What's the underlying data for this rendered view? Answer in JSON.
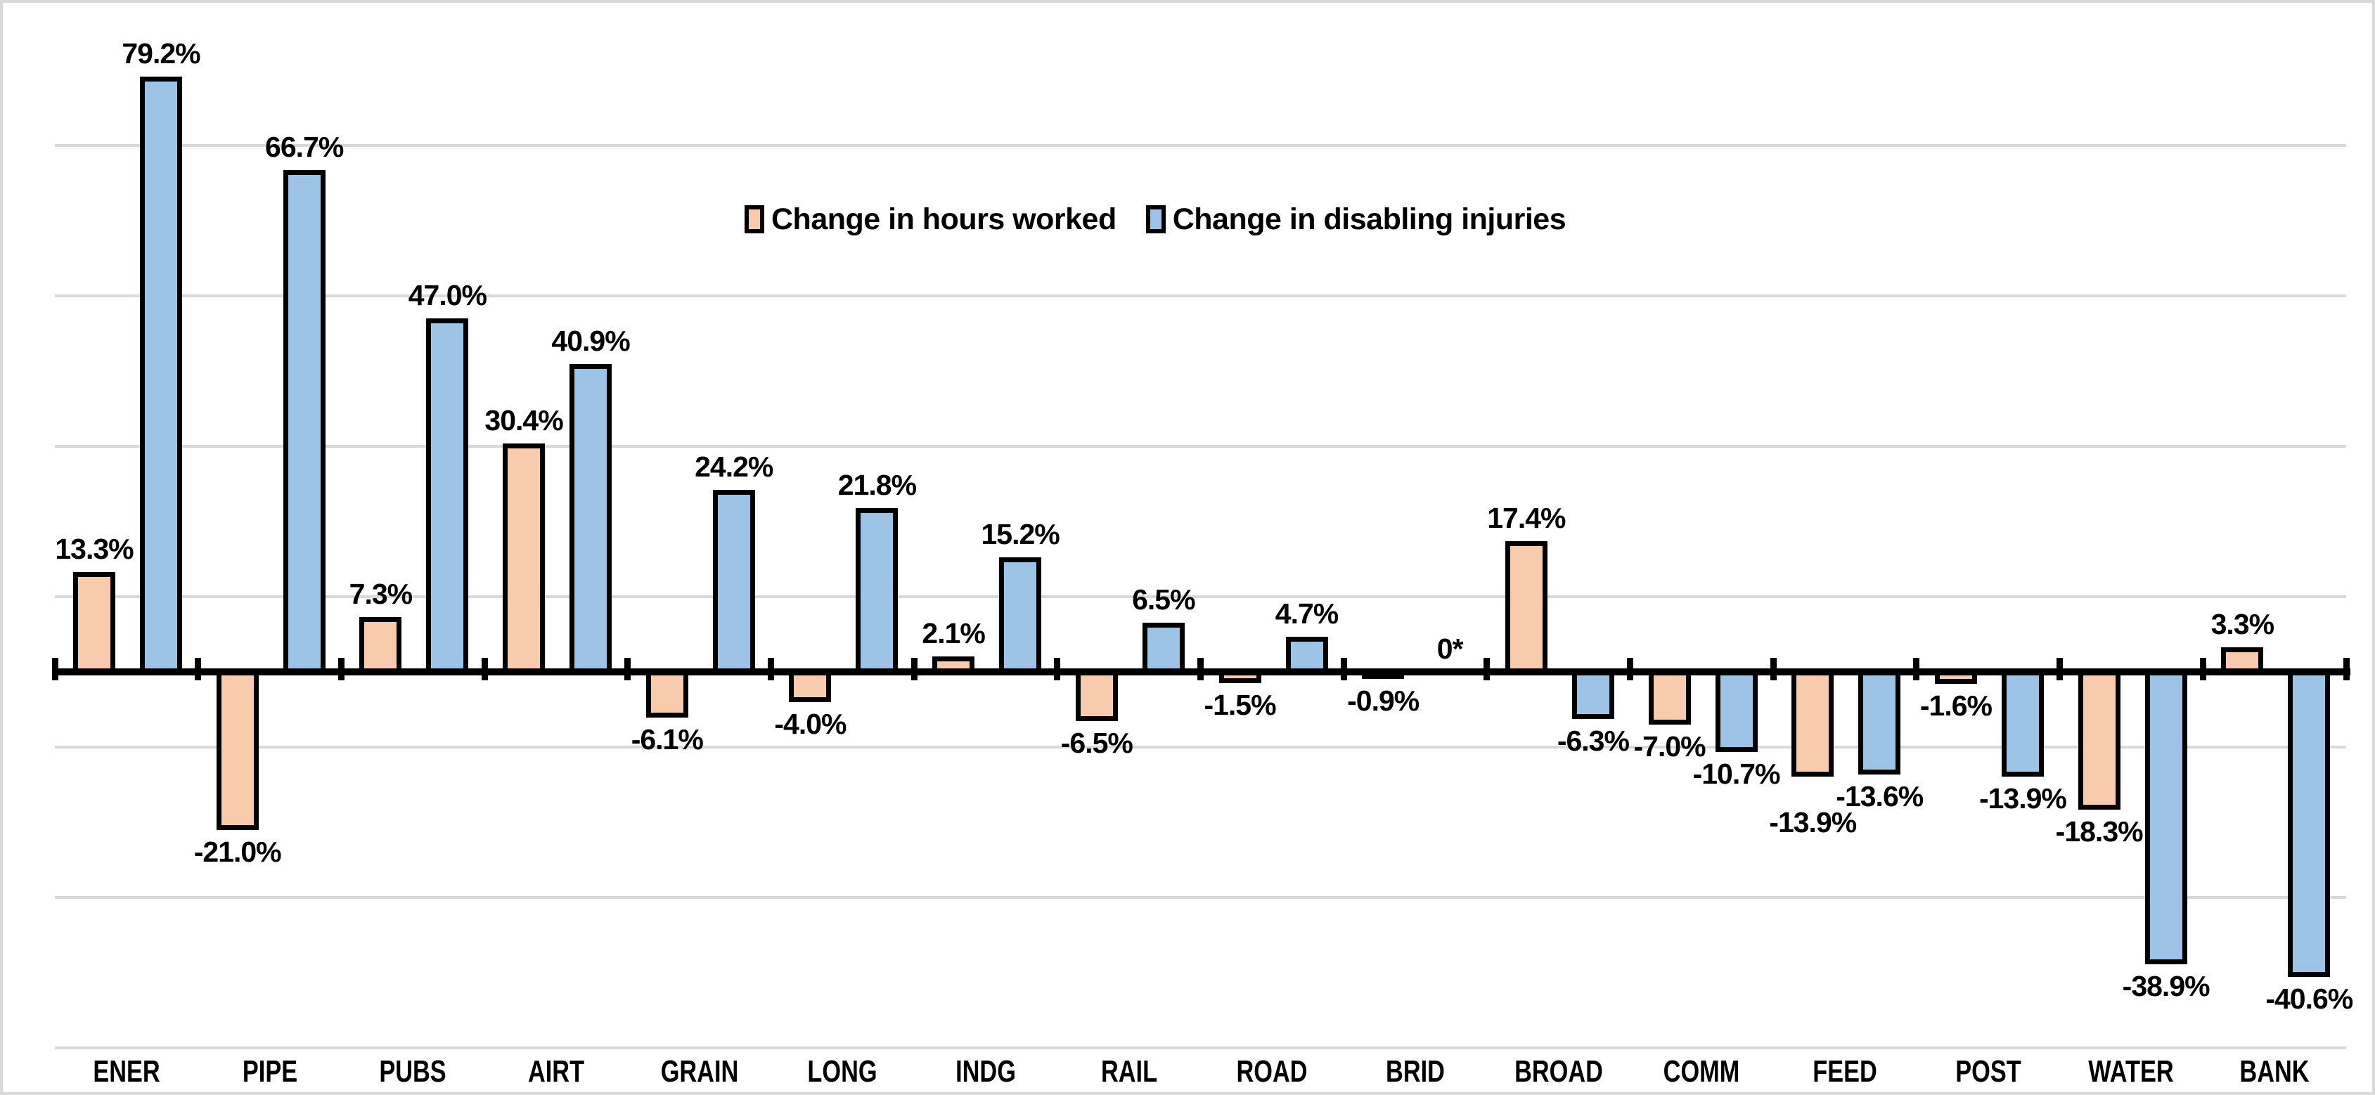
{
  "legend": [
    {
      "label": "Change in hours worked",
      "swatch": "legend-swatch-hours-icon",
      "color": "#F8CBAD"
    },
    {
      "label": "Change in disabling injuries",
      "swatch": "legend-swatch-injuries-icon",
      "color": "#9DC3E6"
    }
  ],
  "colors": {
    "hours_fill": "#F8CBAD",
    "injuries_fill": "#9DC3E6",
    "bar_border": "#000000",
    "axis": "#000000",
    "gridline": "#D9D9D9",
    "frame": "#D9D9D9",
    "label_text": "#000000",
    "background": "#FFFFFF"
  },
  "chart_data": {
    "type": "bar",
    "title": "",
    "xlabel": "",
    "ylabel": "",
    "grid": "on",
    "legend_position": "top-center",
    "ylim": [
      -50,
      90
    ],
    "gridline_values": [
      70,
      50,
      30,
      10,
      -10,
      -30,
      -50
    ],
    "categories": [
      "ENER",
      "PIPE",
      "PUBS",
      "AIRT",
      "GRAIN",
      "LONG",
      "INDG",
      "RAIL",
      "ROAD",
      "BRID",
      "BROAD",
      "COMM",
      "FEED",
      "POST",
      "WATER",
      "BANK"
    ],
    "series": [
      {
        "name": "Change in hours worked",
        "key": "hours",
        "color": "#F8CBAD",
        "values": [
          13.3,
          -21.0,
          7.3,
          30.4,
          -6.1,
          -4.0,
          2.1,
          -6.5,
          -1.5,
          -0.9,
          17.4,
          -7.0,
          -13.9,
          -1.6,
          -18.3,
          3.3
        ],
        "labels": [
          "13.3%",
          "-21.0%",
          "7.3%",
          "30.4%",
          "-6.1%",
          "-4.0%",
          "2.1%",
          "-6.5%",
          "-1.5%",
          "-0.9%",
          "17.4%",
          "-7.0%",
          "-13.9%",
          "-1.6%",
          "-18.3%",
          "3.3%"
        ]
      },
      {
        "name": "Change in disabling injuries",
        "key": "injuries",
        "color": "#9DC3E6",
        "values": [
          79.2,
          66.7,
          47.0,
          40.9,
          24.2,
          21.8,
          15.2,
          6.5,
          4.7,
          null,
          -6.3,
          -10.7,
          -13.6,
          -13.9,
          -38.9,
          -40.6
        ],
        "labels": [
          "79.2%",
          "66.7%",
          "47.0%",
          "40.9%",
          "24.2%",
          "21.8%",
          "15.2%",
          "6.5%",
          "4.7%",
          "0*",
          "-6.3%",
          "-10.7%",
          "-13.6%",
          "-13.9%",
          "-38.9%",
          "-40.6%"
        ]
      }
    ]
  }
}
